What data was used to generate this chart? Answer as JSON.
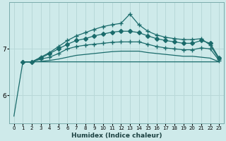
{
  "xlabel": "Humidex (Indice chaleur)",
  "ylabel": "",
  "background_color": "#ceeaea",
  "line_color": "#1a6b6b",
  "grid_color": "#b8d8d8",
  "xlim": [
    -0.5,
    23.5
  ],
  "ylim": [
    5.4,
    8.0
  ],
  "yticks": [
    6,
    7
  ],
  "xticks": [
    0,
    1,
    2,
    3,
    4,
    5,
    6,
    7,
    8,
    9,
    10,
    11,
    12,
    13,
    14,
    15,
    16,
    17,
    18,
    19,
    20,
    21,
    22,
    23
  ],
  "lines": [
    {
      "x": [
        0,
        1,
        2,
        3,
        4,
        5,
        6,
        7,
        8,
        9,
        10,
        11,
        12,
        13,
        14,
        15,
        16,
        17,
        18,
        19,
        20,
        21,
        22,
        23
      ],
      "y": [
        5.55,
        6.72,
        6.72,
        6.72,
        6.72,
        6.72,
        6.72,
        6.72,
        6.72,
        6.72,
        6.72,
        6.72,
        6.72,
        6.72,
        6.72,
        6.72,
        6.72,
        6.72,
        6.72,
        6.72,
        6.72,
        6.72,
        6.72,
        6.72
      ],
      "marker": null,
      "markersize": 0,
      "linestyle": "-",
      "linewidth": 0.9
    },
    {
      "x": [
        1,
        2,
        3,
        4,
        5,
        6,
        7,
        8,
        9,
        10,
        11,
        12,
        13,
        14,
        15,
        16,
        17,
        18,
        19,
        20,
        21,
        22,
        23
      ],
      "y": [
        6.72,
        6.72,
        6.73,
        6.75,
        6.78,
        6.82,
        6.86,
        6.88,
        6.9,
        6.92,
        6.94,
        6.95,
        6.95,
        6.95,
        6.92,
        6.9,
        6.88,
        6.86,
        6.84,
        6.84,
        6.82,
        6.8,
        6.72
      ],
      "marker": null,
      "markersize": 0,
      "linestyle": "-",
      "linewidth": 0.9
    },
    {
      "x": [
        1,
        2,
        3,
        4,
        5,
        6,
        7,
        8,
        9,
        10,
        11,
        12,
        13,
        14,
        15,
        16,
        17,
        18,
        19,
        20,
        21,
        22,
        23
      ],
      "y": [
        6.72,
        6.72,
        6.78,
        6.82,
        6.9,
        7.0,
        7.05,
        7.08,
        7.1,
        7.12,
        7.14,
        7.15,
        7.15,
        7.15,
        7.1,
        7.05,
        7.02,
        7.0,
        6.98,
        6.98,
        7.02,
        7.0,
        6.75
      ],
      "marker": "+",
      "markersize": 4,
      "linestyle": "-",
      "linewidth": 0.9
    },
    {
      "x": [
        1,
        2,
        3,
        4,
        5,
        6,
        7,
        8,
        9,
        10,
        11,
        12,
        13,
        14,
        15,
        16,
        17,
        18,
        19,
        20,
        21,
        22,
        23
      ],
      "y": [
        6.72,
        6.72,
        6.8,
        6.9,
        7.0,
        7.1,
        7.18,
        7.22,
        7.28,
        7.32,
        7.36,
        7.38,
        7.38,
        7.35,
        7.28,
        7.22,
        7.18,
        7.15,
        7.12,
        7.12,
        7.18,
        7.12,
        6.8
      ],
      "marker": "D",
      "markersize": 3,
      "linestyle": "-",
      "linewidth": 0.9
    },
    {
      "x": [
        1,
        2,
        3,
        4,
        5,
        6,
        7,
        8,
        9,
        10,
        11,
        12,
        13,
        14,
        15,
        16,
        17,
        18,
        19,
        20,
        21,
        22,
        23
      ],
      "y": [
        6.72,
        6.72,
        6.82,
        6.92,
        7.05,
        7.18,
        7.28,
        7.35,
        7.42,
        7.48,
        7.52,
        7.55,
        7.75,
        7.52,
        7.38,
        7.3,
        7.25,
        7.22,
        7.2,
        7.2,
        7.22,
        7.08,
        6.78
      ],
      "marker": "+",
      "markersize": 4,
      "linestyle": "-",
      "linewidth": 0.9
    }
  ]
}
